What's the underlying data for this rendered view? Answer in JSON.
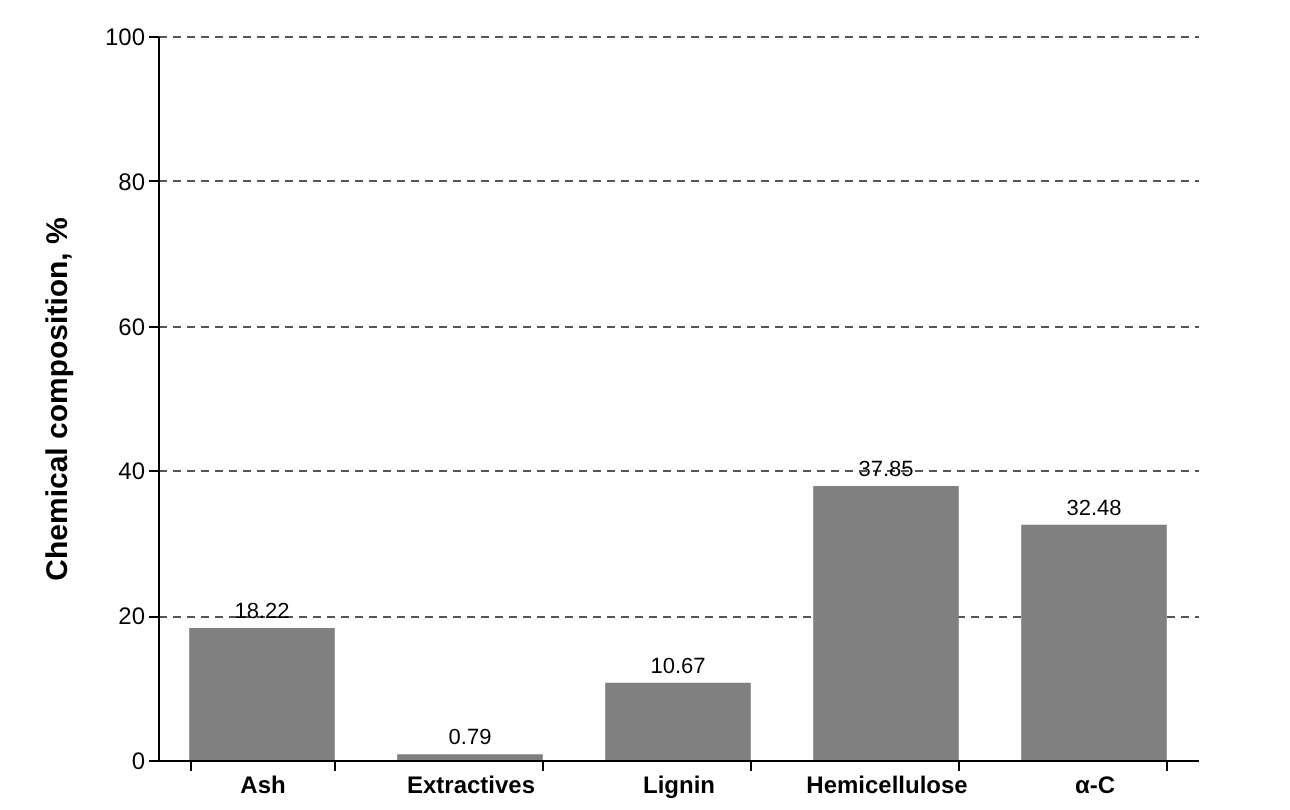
{
  "chart_data": {
    "type": "bar",
    "ylabel": "Chemical composition, %",
    "categories": [
      "Ash",
      "Extractives",
      "Lignin",
      "Hemicellulose",
      "α-C"
    ],
    "values": [
      18.22,
      0.79,
      10.67,
      37.85,
      32.48
    ],
    "color": "#808080",
    "ylim": [
      0,
      100
    ],
    "yticks": [
      0,
      20,
      40,
      60,
      80,
      100
    ],
    "grid": "y",
    "data_labels": true
  }
}
